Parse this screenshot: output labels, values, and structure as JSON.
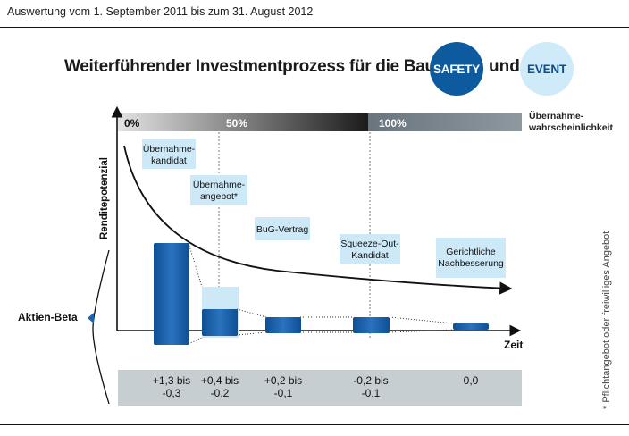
{
  "header": "Auswertung vom 1. September 2011 bis zum 31. August 2012",
  "title": {
    "text": "Weiterführender Investmentprozess für die Bausteine",
    "connector": "und",
    "badge_safety": "SAFETY",
    "badge_event": "EVENT"
  },
  "colors": {
    "safety": "#0d5a9e",
    "event_bg": "#cfeaf8",
    "box_blue": "#1b63ad",
    "label_box": "#cde9f7",
    "band": "#c6ced2"
  },
  "probability_bar": {
    "label": "Übernahme-\nwahrscheinlichkeit",
    "segments": [
      "0%",
      "50%",
      "100%"
    ]
  },
  "axes": {
    "y_label": "Renditepotenzial",
    "x_label": "Zeit",
    "left_label": "Aktien-Beta"
  },
  "stages": [
    {
      "label": "Übernahme-\nkandidat",
      "beta": "+1,3 bis\n-0,3"
    },
    {
      "label": "Übernahme-\nangebot*",
      "beta": "+0,4 bis\n-0,2"
    },
    {
      "label": "BuG-Vertrag",
      "beta": "+0,2 bis\n-0,1"
    },
    {
      "label": "Squeeze-Out-\nKandidat",
      "beta": "-0,2 bis\n-0,1"
    },
    {
      "label": "Gerichtliche\nNachbesserung",
      "beta": "0,0"
    }
  ],
  "footnote": "* Pflichtangebot oder freiwilliges Angebot"
}
